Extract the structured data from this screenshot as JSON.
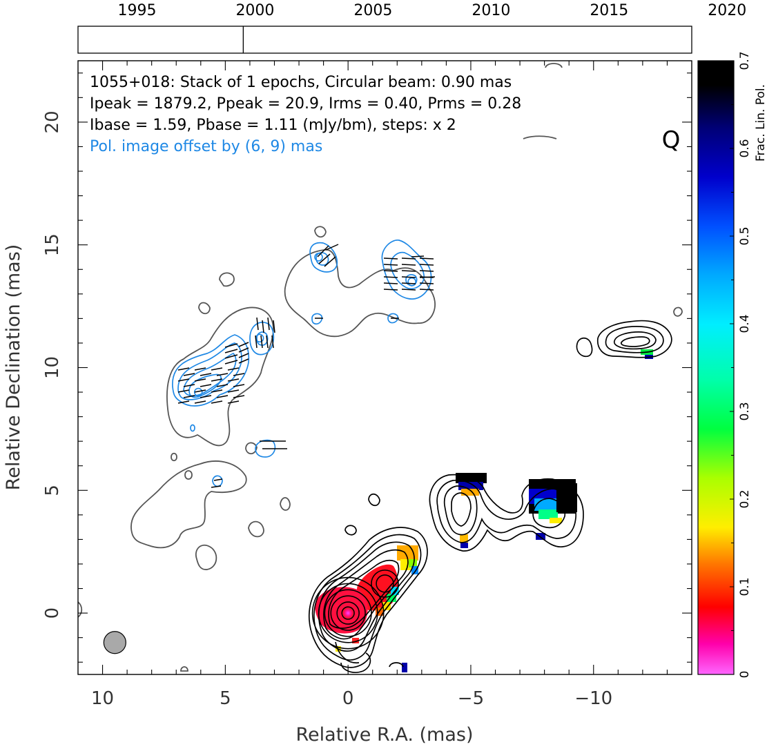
{
  "timeline": {
    "tick_labels": [
      "1995",
      "2000",
      "2005",
      "2010",
      "2015",
      "2020"
    ],
    "range": [
      1992.5,
      2018.5
    ],
    "epochs": [
      1999.5
    ]
  },
  "info": {
    "line1": "1055+018: Stack of 1 epochs, Circular beam: 0.90 mas",
    "line2": "Ipeak = 1879.2, Ppeak = 20.9, Irms = 0.40, Prms = 0.28",
    "line3": "Ibase = 1.59, Pbase = 1.11 (mJy/bm), steps: x 2",
    "offset_note": "Pol. image offset by (6, 9) mas",
    "band": "Q"
  },
  "colors": {
    "stokes_i": "#000000",
    "faint_contour": "#555555",
    "pol_contour": "#1e88e5",
    "offset_note": "#1e88e5",
    "beam": "#a9a9a9"
  },
  "colorbar": {
    "label": "Frac. Lin. Pol.",
    "range": [
      0,
      0.7
    ],
    "tick_labels": [
      "0",
      "0.1",
      "0.2",
      "0.3",
      "0.4",
      "0.5",
      "0.6",
      "0.7"
    ]
  },
  "chart_data": {
    "type": "contour",
    "xlabel": "Relative R.A. (mas)",
    "ylabel": "Relative Declination (mas)",
    "xlim": [
      11,
      -14
    ],
    "ylim": [
      -2.5,
      22.5
    ],
    "x_ticks": [
      10,
      5,
      0,
      -5,
      -10
    ],
    "x_tick_labels": [
      "10",
      "5",
      "0",
      "−5",
      "−10"
    ],
    "y_ticks": [
      0,
      5,
      10,
      15,
      20
    ],
    "y_tick_labels": [
      "0",
      "5",
      "10",
      "15",
      "20"
    ],
    "beam": {
      "x": 9.5,
      "y": -1.2,
      "diameter_mas": 0.9
    },
    "core": {
      "x": 0,
      "y": 0,
      "radii_mas": [
        0.25,
        0.45,
        0.7,
        0.95,
        1.2,
        1.45
      ],
      "secondary": {
        "x": -1.5,
        "y": 1.2
      }
    },
    "knots": [
      {
        "x": -5.2,
        "y": 4.3
      },
      {
        "x": -8.0,
        "y": 4.1
      },
      {
        "x": -12.0,
        "y": 11.0
      }
    ],
    "pol_peaks": [
      {
        "x": 6.1,
        "y": 9.0
      },
      {
        "x": 3.6,
        "y": 11.2
      },
      {
        "x": 1.2,
        "y": 14.5
      },
      {
        "x": -2.6,
        "y": 13.5
      }
    ],
    "frac_pol_samples": [
      {
        "x": 0.0,
        "y": 0.0,
        "value": 0.01
      },
      {
        "x": -1.5,
        "y": 1.2,
        "value": 0.06
      },
      {
        "x": -2.6,
        "y": 2.5,
        "value": 0.14
      },
      {
        "x": -5.2,
        "y": 5.4,
        "value": 0.6
      },
      {
        "x": -8.8,
        "y": 4.7,
        "value": 0.65
      },
      {
        "x": -12.0,
        "y": 10.6,
        "value": 0.25
      }
    ]
  }
}
